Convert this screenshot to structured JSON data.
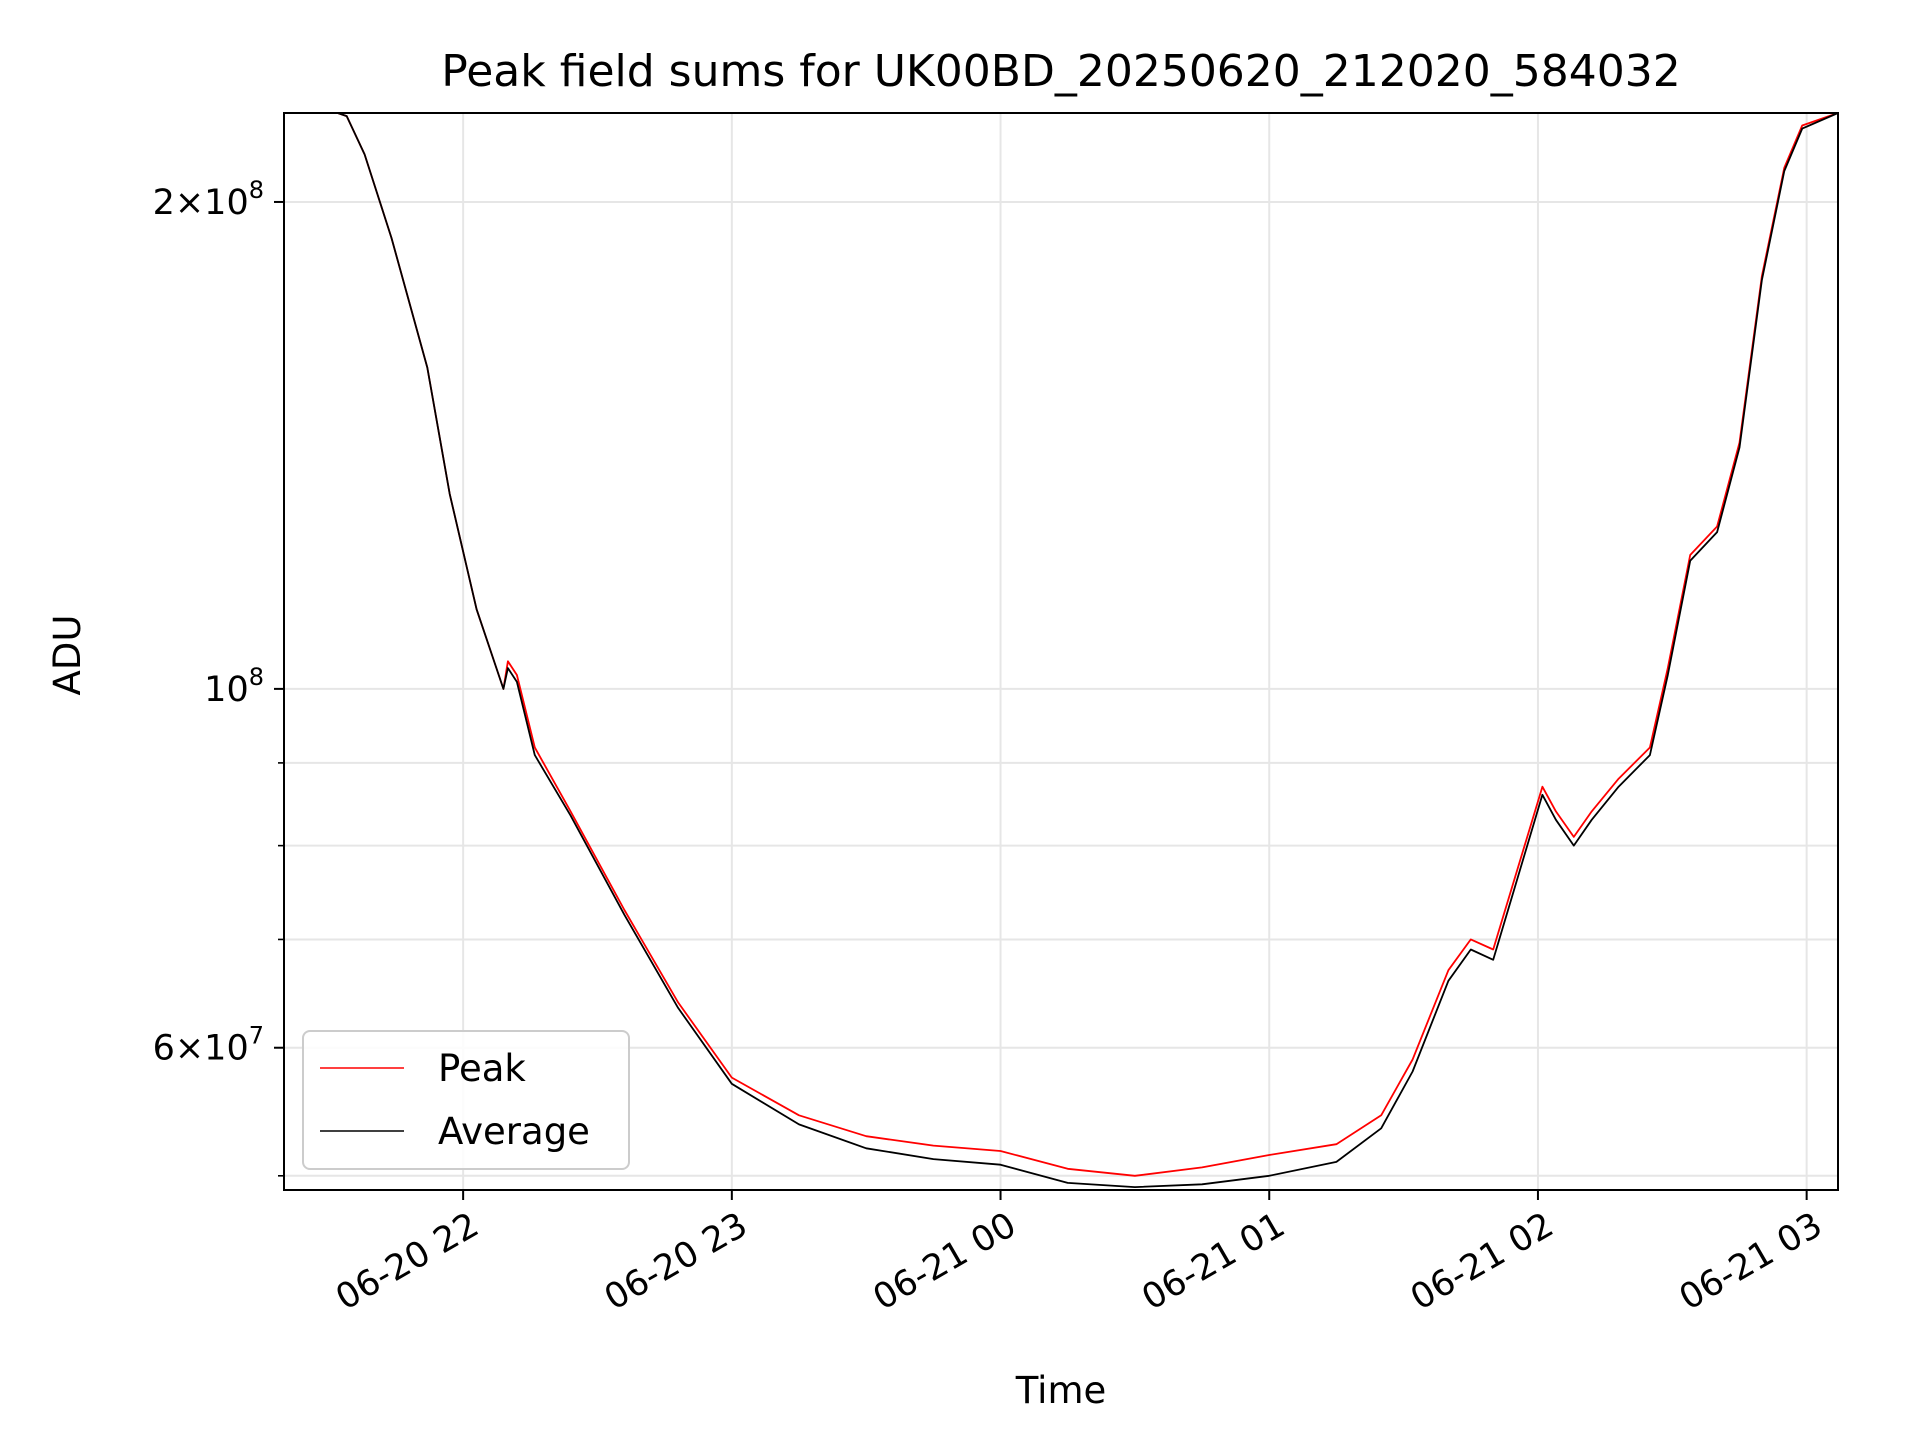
{
  "chart_data": {
    "type": "line",
    "title": "Peak field sums for UK00BD_20250620_212020_584032",
    "xlabel": "Time",
    "ylabel": "ADU",
    "y_scale": "log",
    "ylim": [
      49000000,
      227000000
    ],
    "xlim": [
      "2025-06-20 21:20",
      "2025-06-21 03:07"
    ],
    "grid": true,
    "legend_position": "lower-left",
    "x_ticks": [
      {
        "label": "06-20 22",
        "value": "2025-06-20 22:00"
      },
      {
        "label": "06-20 23",
        "value": "2025-06-20 23:00"
      },
      {
        "label": "06-21 00",
        "value": "2025-06-21 00:00"
      },
      {
        "label": "06-21 01",
        "value": "2025-06-21 01:00"
      },
      {
        "label": "06-21 02",
        "value": "2025-06-21 02:00"
      },
      {
        "label": "06-21 03",
        "value": "2025-06-21 03:00"
      }
    ],
    "y_ticks": [
      {
        "value": 200000000,
        "base": "2×10",
        "exp": "8"
      },
      {
        "value": 100000000,
        "base": "10",
        "exp": "8"
      },
      {
        "value": 60000000,
        "base": "6×10",
        "exp": "7"
      }
    ],
    "y_minor_ticks": [
      50000000,
      70000000,
      80000000,
      90000000
    ],
    "series": [
      {
        "name": "Peak",
        "color": "#ff0000",
        "x": [
          "2025-06-20 21:32",
          "2025-06-20 21:34",
          "2025-06-20 21:38",
          "2025-06-20 21:44",
          "2025-06-20 21:52",
          "2025-06-20 21:57",
          "2025-06-20 22:03",
          "2025-06-20 22:09",
          "2025-06-20 22:10",
          "2025-06-20 22:12",
          "2025-06-20 22:16",
          "2025-06-20 22:24",
          "2025-06-20 22:36",
          "2025-06-20 22:48",
          "2025-06-20 23:00",
          "2025-06-20 23:15",
          "2025-06-20 23:30",
          "2025-06-20 23:45",
          "2025-06-21 00:00",
          "2025-06-21 00:15",
          "2025-06-21 00:30",
          "2025-06-21 00:45",
          "2025-06-21 01:00",
          "2025-06-21 01:15",
          "2025-06-21 01:25",
          "2025-06-21 01:32",
          "2025-06-21 01:40",
          "2025-06-21 01:45",
          "2025-06-21 01:50",
          "2025-06-21 02:01",
          "2025-06-21 02:04",
          "2025-06-21 02:08",
          "2025-06-21 02:12",
          "2025-06-21 02:18",
          "2025-06-21 02:25",
          "2025-06-21 02:29",
          "2025-06-21 02:34",
          "2025-06-21 02:40",
          "2025-06-21 02:45",
          "2025-06-21 02:50",
          "2025-06-21 02:55",
          "2025-06-21 02:59",
          "2025-06-21 03:07"
        ],
        "y": [
          227000000,
          226000000,
          214000000,
          190000000,
          158000000,
          132000000,
          112000000,
          100000000,
          104000000,
          102000000,
          92000000,
          84000000,
          73000000,
          64000000,
          57500000,
          54500000,
          52900000,
          52200000,
          51800000,
          50500000,
          50000000,
          50600000,
          51500000,
          52300000,
          54500000,
          59000000,
          67000000,
          70000000,
          69000000,
          87000000,
          84000000,
          81000000,
          84000000,
          88000000,
          92000000,
          103000000,
          121000000,
          126000000,
          142000000,
          180000000,
          210000000,
          223000000,
          227000000
        ]
      },
      {
        "name": "Average",
        "color": "#000000",
        "x": [
          "2025-06-20 21:32",
          "2025-06-20 21:34",
          "2025-06-20 21:38",
          "2025-06-20 21:44",
          "2025-06-20 21:52",
          "2025-06-20 21:57",
          "2025-06-20 22:03",
          "2025-06-20 22:09",
          "2025-06-20 22:10",
          "2025-06-20 22:12",
          "2025-06-20 22:16",
          "2025-06-20 22:24",
          "2025-06-20 22:36",
          "2025-06-20 22:48",
          "2025-06-20 23:00",
          "2025-06-20 23:15",
          "2025-06-20 23:30",
          "2025-06-20 23:45",
          "2025-06-21 00:00",
          "2025-06-21 00:15",
          "2025-06-21 00:30",
          "2025-06-21 00:45",
          "2025-06-21 01:00",
          "2025-06-21 01:15",
          "2025-06-21 01:25",
          "2025-06-21 01:32",
          "2025-06-21 01:40",
          "2025-06-21 01:45",
          "2025-06-21 01:50",
          "2025-06-21 02:01",
          "2025-06-21 02:04",
          "2025-06-21 02:08",
          "2025-06-21 02:12",
          "2025-06-21 02:18",
          "2025-06-21 02:25",
          "2025-06-21 02:29",
          "2025-06-21 02:34",
          "2025-06-21 02:40",
          "2025-06-21 02:45",
          "2025-06-21 02:50",
          "2025-06-21 02:55",
          "2025-06-21 02:59",
          "2025-06-21 03:07"
        ],
        "y": [
          227000000,
          226000000,
          214000000,
          190000000,
          158000000,
          132000000,
          112000000,
          100000000,
          103000000,
          101000000,
          91000000,
          83500000,
          72500000,
          63500000,
          57000000,
          53800000,
          52000000,
          51200000,
          50800000,
          49500000,
          49200000,
          49400000,
          50000000,
          51000000,
          53500000,
          58000000,
          66000000,
          69000000,
          68000000,
          86000000,
          83000000,
          80000000,
          83000000,
          87000000,
          91000000,
          102000000,
          120000000,
          125000000,
          141000000,
          179000000,
          209000000,
          222000000,
          227000000
        ]
      }
    ]
  }
}
